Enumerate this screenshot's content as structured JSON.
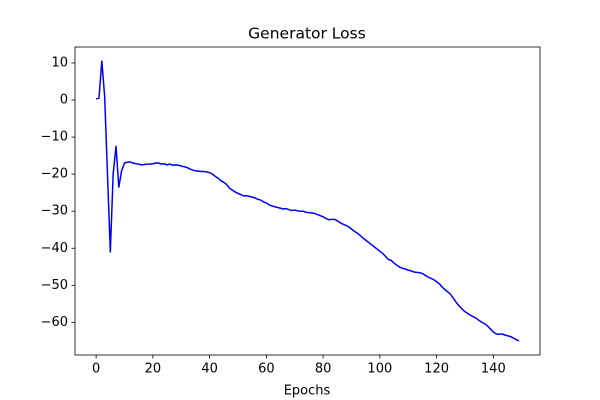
{
  "chart_data": {
    "type": "line",
    "title": "Generator Loss",
    "x_label": "Epochs",
    "x": [
      0,
      1,
      2,
      3,
      4,
      5,
      6,
      7,
      8,
      9,
      10,
      11,
      12,
      13,
      14,
      15,
      16,
      17,
      18,
      19,
      20,
      21,
      22,
      23,
      24,
      25,
      26,
      27,
      28,
      29,
      30,
      31,
      32,
      33,
      34,
      35,
      36,
      37,
      38,
      39,
      40,
      41,
      42,
      43,
      44,
      45,
      46,
      47,
      48,
      49,
      50,
      51,
      52,
      53,
      54,
      55,
      56,
      57,
      58,
      59,
      60,
      61,
      62,
      63,
      64,
      65,
      66,
      67,
      68,
      69,
      70,
      71,
      72,
      73,
      74,
      75,
      76,
      77,
      78,
      79,
      80,
      81,
      82,
      83,
      84,
      85,
      86,
      87,
      88,
      89,
      90,
      91,
      92,
      93,
      94,
      95,
      96,
      97,
      98,
      99,
      100,
      101,
      102,
      103,
      104,
      105,
      106,
      107,
      108,
      109,
      110,
      111,
      112,
      113,
      114,
      115,
      116,
      117,
      118,
      119,
      120,
      121,
      122,
      123,
      124,
      125,
      126,
      127,
      128,
      129,
      130,
      131,
      132,
      133,
      134,
      135,
      136,
      137,
      138,
      139,
      140,
      141,
      142,
      143,
      144,
      145,
      146,
      147,
      148,
      149
    ],
    "series": [
      {
        "color": "#0000ff",
        "values": [
          0.3,
          0.5,
          10.5,
          1,
          -20,
          -41,
          -20,
          -12.5,
          -23.5,
          -19,
          -17,
          -16.8,
          -16.7,
          -17,
          -17.2,
          -17.3,
          -17.5,
          -17.4,
          -17.3,
          -17.3,
          -17.2,
          -17,
          -17,
          -17.3,
          -17.2,
          -17.5,
          -17.3,
          -17.6,
          -17.5,
          -17.6,
          -17.8,
          -18,
          -18.2,
          -18.6,
          -18.9,
          -19.1,
          -19.2,
          -19.3,
          -19.3,
          -19.4,
          -19.6,
          -20,
          -20.6,
          -21.1,
          -21.8,
          -22.2,
          -22.8,
          -23.8,
          -24.3,
          -24.8,
          -25.2,
          -25.5,
          -25.9,
          -25.8,
          -26,
          -26.2,
          -26.4,
          -26.8,
          -27,
          -27.5,
          -27.8,
          -28.3,
          -28.6,
          -28.8,
          -29,
          -29.2,
          -29.4,
          -29.3,
          -29.6,
          -29.8,
          -29.7,
          -29.9,
          -30,
          -30,
          -30.3,
          -30.4,
          -30.5,
          -30.6,
          -30.9,
          -31.2,
          -31.5,
          -32,
          -32.3,
          -32.2,
          -32.2,
          -32.6,
          -33.1,
          -33.5,
          -33.8,
          -34.2,
          -34.8,
          -35.4,
          -35.9,
          -36.5,
          -37.2,
          -37.8,
          -38.4,
          -39,
          -39.6,
          -40.2,
          -40.8,
          -41.4,
          -42.2,
          -43,
          -43.3,
          -44,
          -44.6,
          -45.1,
          -45.4,
          -45.6,
          -45.9,
          -46.1,
          -46.4,
          -46.5,
          -46.6,
          -46.8,
          -47.3,
          -47.8,
          -48.1,
          -48.5,
          -49,
          -49.6,
          -50.5,
          -51.2,
          -51.8,
          -52.5,
          -53.6,
          -54.7,
          -55.6,
          -56.4,
          -57.1,
          -57.6,
          -58.1,
          -58.5,
          -58.9,
          -59.5,
          -60,
          -60.4,
          -61,
          -61.8,
          -62.6,
          -63.1,
          -63.2,
          -63.1,
          -63.4,
          -63.6,
          -63.8,
          -64.2,
          -64.6,
          -65
        ]
      }
    ],
    "xlim": [
      -7.45,
      156.45
    ],
    "ylim": [
      -68.8,
      14.3
    ],
    "xticks": [
      0,
      20,
      40,
      60,
      80,
      100,
      120,
      140
    ],
    "yticks": [
      {
        "value": -60,
        "label": "−60"
      },
      {
        "value": -50,
        "label": "−50"
      },
      {
        "value": -40,
        "label": "−40"
      },
      {
        "value": -30,
        "label": "−30"
      },
      {
        "value": -20,
        "label": "−20"
      },
      {
        "value": -10,
        "label": "−10"
      },
      0,
      10
    ]
  }
}
